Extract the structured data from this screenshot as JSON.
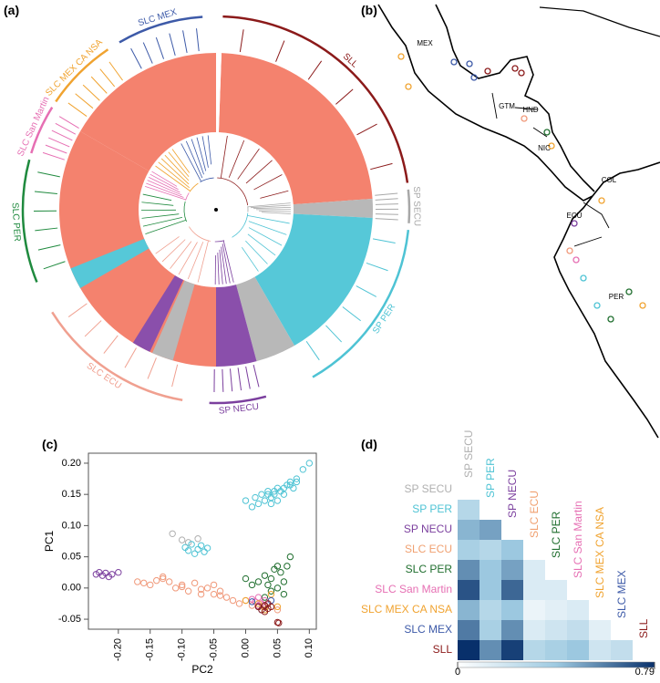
{
  "panels": {
    "a": "(a)",
    "b": "(b)",
    "c": "(c)",
    "d": "(d)"
  },
  "tree": {
    "clades": [
      {
        "name": "SLL",
        "color": "#8b1a1a"
      },
      {
        "name": "SP SECU",
        "color": "#a8a8a8"
      },
      {
        "name": "SP PER",
        "color": "#4ec3d4"
      },
      {
        "name": "SP NECU",
        "color": "#7b3f9e"
      },
      {
        "name": "SLC ECU",
        "color": "#f0a090"
      },
      {
        "name": "SLC PER",
        "color": "#1f8a3e"
      },
      {
        "name": "SLC San Martin",
        "color": "#e66fb3"
      },
      {
        "name": "SLC MEX CA NSA",
        "color": "#f0a330"
      },
      {
        "name": "SLC MEX",
        "color": "#3d5aa8"
      }
    ]
  },
  "map": {
    "country_labels": [
      "MEX",
      "GTM",
      "HND",
      "NIC",
      "COL",
      "ECU",
      "PER"
    ]
  },
  "chart_data": [
    {
      "type": "scatter",
      "x_label": "PC2",
      "y_label": "PC1",
      "xlim": [
        -0.247,
        0.111
      ],
      "ylim": [
        -0.066,
        0.216
      ],
      "xticks": [
        {
          "value": -0.2,
          "label": "-0.20"
        },
        -0.15,
        {
          "value": -0.1,
          "label": "-0.10"
        },
        -0.05,
        {
          "value": 0,
          "label": "0.00"
        },
        0.05,
        {
          "value": 0.1,
          "label": "0.10"
        }
      ],
      "yticks": [
        -0.05,
        {
          "value": 0,
          "label": "0.00"
        },
        0.05,
        {
          "value": 0.1,
          "label": "0.10"
        },
        0.15,
        {
          "value": 0.2,
          "label": "0.20"
        }
      ],
      "series": [
        {
          "color": "#b0b0b0",
          "x": [
            -0.115,
            -0.1,
            -0.09,
            -0.075
          ],
          "y": [
            0.087,
            0.077,
            0.073,
            0.079
          ]
        },
        {
          "color": "#4ec3d4",
          "x": [
            -0.095,
            -0.09,
            -0.085,
            -0.08,
            -0.075,
            -0.07,
            -0.065,
            -0.06,
            0.0,
            0.01,
            0.015,
            0.02,
            0.025,
            0.03,
            0.035,
            0.04,
            0.045,
            0.05,
            0.055,
            0.06,
            0.065,
            0.07,
            0.075,
            0.08,
            0.04,
            0.05,
            0.06,
            0.07,
            0.09,
            0.1,
            0.08,
            0.035,
            0.045
          ],
          "y": [
            0.065,
            0.06,
            0.07,
            0.055,
            0.062,
            0.068,
            0.058,
            0.064,
            0.14,
            0.13,
            0.145,
            0.135,
            0.15,
            0.14,
            0.155,
            0.145,
            0.15,
            0.16,
            0.155,
            0.16,
            0.165,
            0.17,
            0.16,
            0.175,
            0.135,
            0.14,
            0.15,
            0.165,
            0.19,
            0.2,
            0.17,
            0.15,
            0.155
          ]
        },
        {
          "color": "#7b3f9e",
          "x": [
            -0.235,
            -0.23,
            -0.225,
            -0.22,
            -0.215,
            -0.21,
            -0.2
          ],
          "y": [
            0.022,
            0.025,
            0.02,
            0.024,
            0.018,
            0.022,
            0.025
          ]
        },
        {
          "color": "#f0997a",
          "x": [
            -0.17,
            -0.16,
            -0.15,
            -0.14,
            -0.13,
            -0.12,
            -0.11,
            -0.1,
            -0.09,
            -0.08,
            -0.07,
            -0.06,
            -0.05,
            -0.04,
            -0.03,
            -0.02,
            -0.01,
            0.0,
            0.01,
            0.02,
            -0.13,
            -0.1,
            -0.07,
            -0.05,
            -0.04,
            0.03,
            0.05
          ],
          "y": [
            0.01,
            0.008,
            0.005,
            0.012,
            0.018,
            0.01,
            0.0,
            0.002,
            -0.005,
            0.008,
            -0.01,
            0.0,
            -0.01,
            -0.005,
            -0.015,
            -0.02,
            -0.025,
            -0.02,
            -0.028,
            -0.03,
            0.015,
            0.005,
            -0.002,
            0.005,
            -0.012,
            -0.03,
            -0.035
          ]
        },
        {
          "color": "#1f6e2e",
          "x": [
            0.02,
            0.03,
            0.035,
            0.04,
            0.045,
            0.05,
            0.055,
            0.06,
            0.065,
            0.07,
            0.04,
            0.05,
            0.06,
            0.03,
            0.0,
            0.01
          ],
          "y": [
            0.01,
            0.02,
            0.005,
            0.015,
            0.03,
            0.035,
            0.025,
            0.01,
            0.035,
            0.05,
            -0.005,
            0.0,
            -0.01,
            -0.015,
            0.015,
            0.005
          ]
        },
        {
          "color": "#e66fb3",
          "x": [
            0.01,
            0.015,
            0.02,
            0.025,
            0.03,
            0.02
          ],
          "y": [
            -0.018,
            -0.022,
            -0.015,
            -0.025,
            -0.02,
            -0.028
          ]
        },
        {
          "color": "#f0a330",
          "x": [
            0.0,
            0.02,
            0.04,
            0.05,
            0.03
          ],
          "y": [
            -0.02,
            -0.025,
            -0.01,
            -0.03,
            -0.035
          ]
        },
        {
          "color": "#3d5aa8",
          "x": [
            0.01,
            0.02,
            0.03,
            0.04,
            0.025
          ],
          "y": [
            -0.022,
            -0.03,
            -0.028,
            -0.02,
            -0.035
          ]
        },
        {
          "color": "#8b1a1a",
          "x": [
            0.02,
            0.025,
            0.03,
            0.035,
            0.04,
            0.03,
            0.035,
            0.05,
            0.052
          ],
          "y": [
            -0.03,
            -0.035,
            -0.028,
            -0.033,
            -0.03,
            -0.038,
            -0.025,
            -0.055,
            -0.056
          ]
        }
      ]
    },
    {
      "type": "heatmap",
      "categories": [
        "SP SECU",
        "SP PER",
        "SP NECU",
        "SLC ECU",
        "SLC PER",
        "SLC San Martin",
        "SLC MEX CA NSA",
        "SLC MEX",
        "SLL"
      ],
      "colors": [
        "#b0b0b0",
        "#4ec3d4",
        "#7b3f9e",
        "#f0a070",
        "#1f6e2e",
        "#e66fb3",
        "#f0a330",
        "#3d5aa8",
        "#8b1a1a"
      ],
      "values": [
        [
          null,
          null,
          null,
          null,
          null,
          null,
          null,
          null,
          null
        ],
        [
          0.3,
          null,
          null,
          null,
          null,
          null,
          null,
          null,
          null
        ],
        [
          0.45,
          0.5,
          null,
          null,
          null,
          null,
          null,
          null,
          null
        ],
        [
          0.35,
          0.3,
          0.4,
          null,
          null,
          null,
          null,
          null,
          null
        ],
        [
          0.55,
          0.4,
          0.5,
          0.15,
          null,
          null,
          null,
          null,
          null
        ],
        [
          0.7,
          0.4,
          0.65,
          0.15,
          0.15,
          null,
          null,
          null,
          null
        ],
        [
          0.45,
          0.3,
          0.4,
          0.08,
          0.12,
          0.15,
          null,
          null,
          null
        ],
        [
          0.6,
          0.35,
          0.55,
          0.15,
          0.2,
          0.25,
          0.12,
          null,
          null
        ],
        [
          0.79,
          0.55,
          0.75,
          0.3,
          0.35,
          0.4,
          0.2,
          0.25,
          null
        ]
      ],
      "colormap": [
        "#ffffff",
        "#9ecae1",
        "#08306b"
      ],
      "range": [
        0,
        0.79
      ],
      "colorbar_ticks": [
        0,
        0.79
      ]
    }
  ]
}
